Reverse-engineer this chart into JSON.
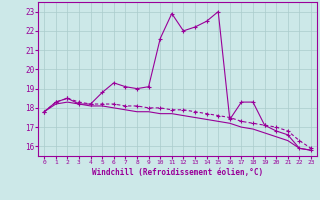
{
  "xlabel": "Windchill (Refroidissement éolien,°C)",
  "hours": [
    0,
    1,
    2,
    3,
    4,
    5,
    6,
    7,
    8,
    9,
    10,
    11,
    12,
    13,
    14,
    15,
    16,
    17,
    18,
    19,
    20,
    21,
    22,
    23
  ],
  "line1": [
    17.8,
    18.3,
    18.5,
    18.2,
    18.2,
    18.8,
    19.3,
    19.1,
    19.0,
    19.1,
    21.6,
    22.9,
    22.0,
    22.2,
    22.5,
    23.0,
    17.4,
    18.3,
    18.3,
    17.1,
    16.8,
    16.6,
    15.9,
    15.8
  ],
  "line2": [
    17.8,
    18.3,
    18.5,
    18.3,
    18.2,
    18.2,
    18.2,
    18.1,
    18.1,
    18.0,
    18.0,
    17.9,
    17.9,
    17.8,
    17.7,
    17.6,
    17.5,
    17.3,
    17.2,
    17.1,
    17.0,
    16.8,
    16.3,
    15.9
  ],
  "line3": [
    17.8,
    18.2,
    18.3,
    18.2,
    18.1,
    18.1,
    18.0,
    17.9,
    17.8,
    17.8,
    17.7,
    17.7,
    17.6,
    17.5,
    17.4,
    17.3,
    17.2,
    17.0,
    16.9,
    16.7,
    16.5,
    16.3,
    15.9,
    15.8
  ],
  "line_color": "#990099",
  "bg_color": "#cce8e8",
  "grid_color": "#aacccc",
  "ylim": [
    15.5,
    23.5
  ],
  "yticks": [
    16,
    17,
    18,
    19,
    20,
    21,
    22,
    23
  ],
  "xlim": [
    -0.5,
    23.5
  ]
}
